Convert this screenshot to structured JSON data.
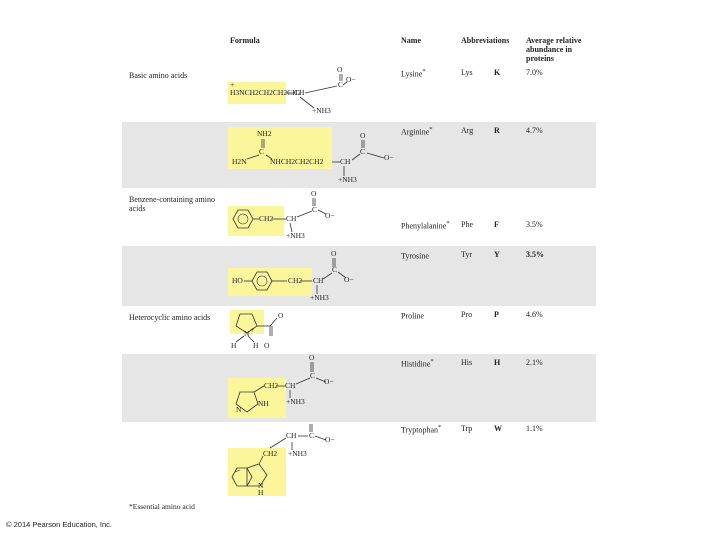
{
  "headers": {
    "formula": "Formula",
    "name": "Name",
    "abbreviations": "Abbreviations",
    "abundance": "Average relative abundance in proteins"
  },
  "categories": {
    "basic": "Basic amino acids",
    "benzene": "Benzene-containing amino acids",
    "heterocyclic": "Heterocyclic amino acids"
  },
  "rows": [
    {
      "name": "Lysine",
      "essential": "*",
      "three": "Lys",
      "one": "K",
      "abundance": "7.0%"
    },
    {
      "name": "Arginine",
      "essential": "*",
      "three": "Arg",
      "one": "R",
      "abundance": "4.7%"
    },
    {
      "name": "Phenylalanine",
      "essential": "*",
      "three": "Phe",
      "one": "F",
      "abundance": "3.5%"
    },
    {
      "name": "Tyrosine",
      "essential": "",
      "three": "Tyr",
      "one": "Y",
      "abundance": "3.5%"
    },
    {
      "name": "Proline",
      "essential": "",
      "three": "Pro",
      "one": "P",
      "abundance": "4.6%"
    },
    {
      "name": "Histidine",
      "essential": "*",
      "three": "His",
      "one": "H",
      "abundance": "2.1%"
    },
    {
      "name": "Tryptophan",
      "essential": "*",
      "three": "Trp",
      "one": "W",
      "abundance": "1.1%"
    }
  ],
  "formulas": {
    "lysine_side": "H3NCH2CH2CH2CH2",
    "lysine_plus": "+",
    "arg_nh2": "NH2",
    "arg_c": "C",
    "arg_h2n": "H2N",
    "arg_chain": "NHCH2CH2CH2",
    "phe_ch2": "CH2",
    "tyr_ho": "HO",
    "tyr_ch2": "CH2",
    "his_ch2": "CH2",
    "his_n": "N",
    "his_nh": "NH",
    "pro_h": "H",
    "pro_n": "N",
    "pro_plus": "+",
    "pro_o": "O",
    "trp_ch2": "CH2",
    "trp_nh": "N",
    "trp_h": "H",
    "backbone_ch": "CH",
    "backbone_c": "C",
    "backbone_o": "O",
    "backbone_ominus": "O−",
    "backbone_nh3": "+NH3"
  },
  "footnote": "*Essential amino acid",
  "copyright": "© 2014 Pearson Education, Inc."
}
